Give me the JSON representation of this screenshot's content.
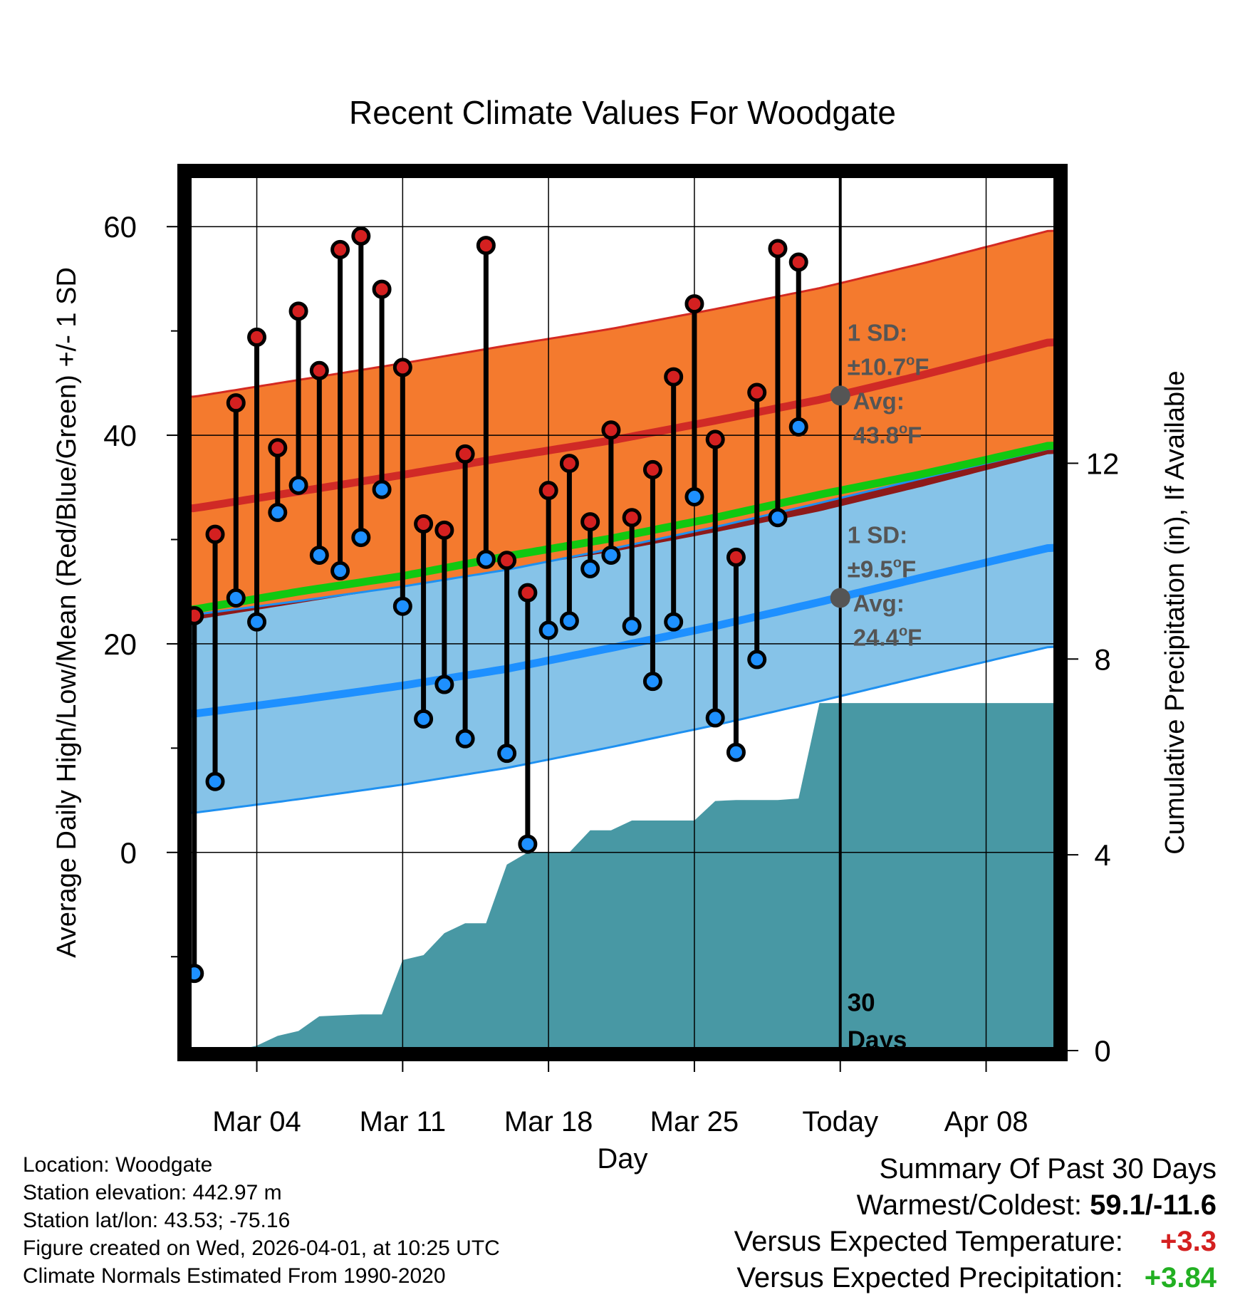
{
  "chart_data": {
    "type": "line",
    "title": "Recent Climate Values For Woodgate",
    "xlabel": "Day",
    "ylabel": "Average Daily High/Low/Mean (Red/Blue/Green) +/- 1 SD",
    "y2label": "Cumulative Precipitation (in), If Available",
    "ylim": [
      -19,
      65
    ],
    "y2lim": [
      0,
      17.9
    ],
    "xlim": [
      -0.3,
      41.4
    ],
    "x_ticks": [
      {
        "day": 3,
        "label": "Mar 04"
      },
      {
        "day": 10,
        "label": "Mar 11"
      },
      {
        "day": 17,
        "label": "Mar 18"
      },
      {
        "day": 24,
        "label": "Mar 25"
      },
      {
        "day": 31,
        "label": "Today"
      },
      {
        "day": 38,
        "label": "Apr 08"
      }
    ],
    "y_ticks_major": [
      0,
      20,
      40,
      60
    ],
    "y_ticks_minor": [
      -10,
      10,
      30,
      50
    ],
    "y2_ticks": [
      0,
      4,
      8,
      12
    ],
    "today_day": 31,
    "highs": [
      22.7,
      30.5,
      43.1,
      49.4,
      38.8,
      51.9,
      46.2,
      57.8,
      59.1,
      54.0,
      46.5,
      31.5,
      30.9,
      38.2,
      58.2,
      28.0,
      24.9,
      34.7,
      37.3,
      31.7,
      40.5,
      32.1,
      36.7,
      45.6,
      52.6,
      39.6,
      28.3,
      44.1,
      57.9,
      56.6
    ],
    "lows": [
      -11.6,
      6.8,
      24.4,
      22.1,
      32.6,
      35.2,
      28.5,
      27.0,
      30.2,
      34.8,
      23.6,
      12.8,
      16.1,
      10.9,
      28.1,
      9.5,
      0.8,
      21.3,
      22.2,
      27.2,
      28.5,
      21.7,
      16.4,
      22.1,
      34.1,
      12.9,
      9.6,
      18.5,
      32.1,
      40.8
    ],
    "normal_high": {
      "day": [
        0,
        5,
        10,
        15,
        20,
        25,
        30,
        35,
        41
      ],
      "mean": [
        33.0,
        34.6,
        36.2,
        37.9,
        39.5,
        41.4,
        43.4,
        45.8,
        48.9
      ]
    },
    "normal_low": {
      "day": [
        0,
        5,
        10,
        15,
        20,
        25,
        30,
        35,
        41
      ],
      "mean": [
        13.3,
        14.6,
        16.0,
        17.6,
        19.6,
        21.7,
        24.0,
        26.4,
        29.2
      ]
    },
    "normal_mean": {
      "day": [
        0,
        5,
        10,
        15,
        20,
        25,
        30,
        35,
        41
      ],
      "mean": [
        23.3,
        25.0,
        26.5,
        28.4,
        30.1,
        32.1,
        34.3,
        36.3,
        39.0
      ]
    },
    "high_sd": 10.7,
    "low_sd": 9.5,
    "precip_cumulative": [
      0,
      0,
      0,
      0.1,
      0.3,
      0.4,
      0.7,
      0.72,
      0.74,
      0.74,
      1.85,
      1.95,
      2.4,
      2.6,
      2.6,
      3.8,
      4.05,
      4.05,
      4.05,
      4.5,
      4.5,
      4.7,
      4.7,
      4.7,
      4.7,
      5.1,
      5.12,
      5.12,
      5.12,
      5.15,
      7.1,
      7.1
    ],
    "annotations": {
      "high": {
        "line1": "1 SD:",
        "sd_prefix": "±10.7",
        "deg": "o",
        "unit": "F",
        "avg_label": "Avg:",
        "avg_value": "43.8",
        "avg_num": 43.8
      },
      "low": {
        "line1": "1 SD:",
        "sd_prefix": "±9.5",
        "deg": "o",
        "unit": "F",
        "avg_label": "Avg:",
        "avg_value": "24.4",
        "avg_num": 24.4
      },
      "days_count": "30",
      "days_word": "Days"
    }
  },
  "footer": {
    "location": "Location: Woodgate",
    "elevation": "Station elevation: 442.97 m",
    "latlon": "Station lat/lon: 43.53; -75.16",
    "created": "Figure created on Wed, 2026-04-01, at 10:25 UTC",
    "normals": "Climate Normals Estimated From 1990-2020"
  },
  "summary": {
    "title": "Summary Of Past 30 Days",
    "warm_cold_label": "Warmest/Coldest:",
    "warm_cold_value": "59.1/-11.6",
    "temp_label": "Versus Expected Temperature:",
    "temp_value": "+3.3",
    "precip_label": "Versus Expected Precipitation:",
    "precip_value": "+3.84"
  },
  "colors": {
    "high_band": "#f47a2e",
    "high_edge": "#d42a22",
    "high_mean": "#d02a26",
    "low_band": "#86c3e8",
    "low_edge": "#1e90f0",
    "low_mean": "#1e90ff",
    "overlap_band": "#8e1a1a",
    "mean_line": "#11c811",
    "precip": "#4898a4",
    "high_marker": "#d42020",
    "low_marker": "#1e90ff",
    "annotation": "#555555",
    "temp_delta": "#d42020",
    "precip_delta": "#22b022"
  }
}
